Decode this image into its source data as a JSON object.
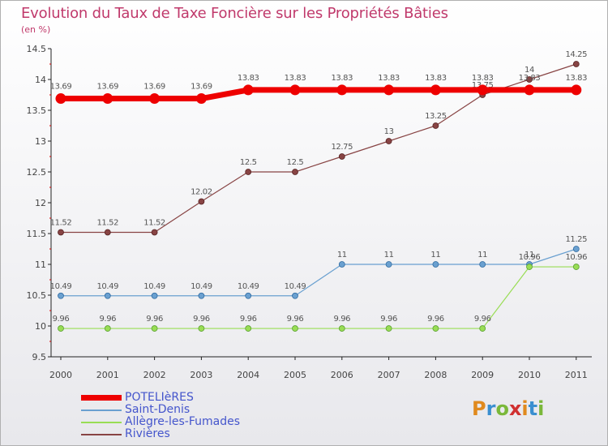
{
  "header": {
    "title": "Evolution du Taux de Taxe Foncière sur les Propriétés Bâties",
    "subtitle": "(en %)"
  },
  "logo": {
    "text": "Proxiti",
    "letters": [
      "P",
      "r",
      "o",
      "x",
      "i",
      "t",
      "i"
    ]
  },
  "chart_data": {
    "type": "line",
    "title": "Evolution du Taux de Taxe Foncière sur les Propriétés Bâties",
    "ylabel": "(en %)",
    "xlabel": "",
    "ylim": [
      9.5,
      14.5
    ],
    "yticks": [
      "9.5",
      "10",
      "10.5",
      "11",
      "11.5",
      "12",
      "12.5",
      "13",
      "13.5",
      "14",
      "14.5"
    ],
    "categories": [
      "2000",
      "2001",
      "2002",
      "2003",
      "2004",
      "2005",
      "2006",
      "2007",
      "2008",
      "2009",
      "2010",
      "2011"
    ],
    "grid": false,
    "legend_position": "bottom-left",
    "series": [
      {
        "name": "POTELIèRES",
        "color": "#ee0000",
        "values": [
          13.69,
          13.69,
          13.69,
          13.69,
          13.83,
          13.83,
          13.83,
          13.83,
          13.83,
          13.83,
          13.83,
          13.83
        ],
        "labels": [
          "13.69",
          "13.69",
          "13.69",
          "13.69",
          "13.83",
          "13.83",
          "13.83",
          "13.83",
          "13.83",
          "13.83",
          "13.83",
          "13.83"
        ]
      },
      {
        "name": "Saint-Denis",
        "color": "#6aa0d0",
        "values": [
          10.49,
          10.49,
          10.49,
          10.49,
          10.49,
          10.49,
          11,
          11,
          11,
          11,
          11,
          11.25
        ],
        "labels": [
          "10.49",
          "10.49",
          "10.49",
          "10.49",
          "10.49",
          "10.49",
          "11",
          "11",
          "11",
          "11",
          "11",
          "11.25"
        ]
      },
      {
        "name": "Allègre-les-Fumades",
        "color": "#99dd55",
        "values": [
          9.96,
          9.96,
          9.96,
          9.96,
          9.96,
          9.96,
          9.96,
          9.96,
          9.96,
          9.96,
          10.96,
          10.96
        ],
        "labels": [
          "9.96",
          "9.96",
          "9.96",
          "9.96",
          "9.96",
          "9.96",
          "9.96",
          "9.96",
          "9.96",
          "9.96",
          "10.96",
          "10.96"
        ]
      },
      {
        "name": "Rivières",
        "color": "#884444",
        "values": [
          11.52,
          11.52,
          11.52,
          12.02,
          12.5,
          12.5,
          12.75,
          13,
          13.25,
          13.75,
          14,
          14.25
        ],
        "labels": [
          "11.52",
          "11.52",
          "11.52",
          "12.02",
          "12.5",
          "12.5",
          "12.75",
          "13",
          "13.25",
          "13.75",
          "14",
          "14.25"
        ]
      }
    ]
  }
}
